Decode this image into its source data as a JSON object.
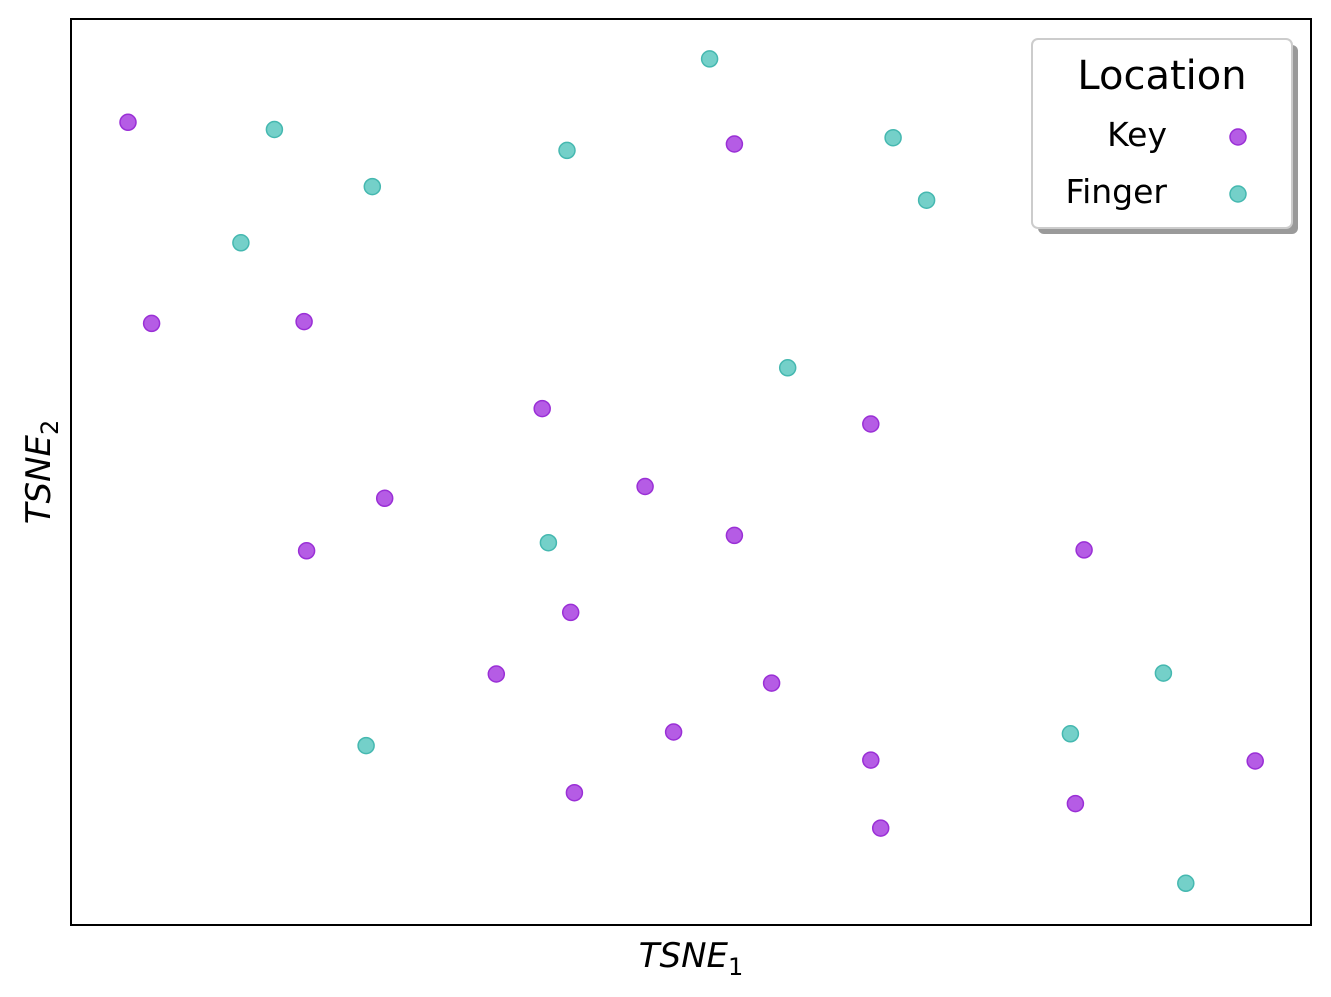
{
  "chart_data": {
    "type": "scatter",
    "title": "",
    "xlabel": "TSNE",
    "xlabel_sub": "1",
    "ylabel": "TSNE",
    "ylabel_sub": "2",
    "xlim": [
      0,
      1
    ],
    "ylim": [
      0,
      1
    ],
    "ticks_visible": false,
    "grid": false,
    "legend": {
      "title": "Location",
      "placement": "top-right",
      "shadow": true
    },
    "series": [
      {
        "name": "Key",
        "color": "#a83fe0",
        "edge_color": "#9a2fd6",
        "points": [
          {
            "x": 0.046,
            "y": 0.886
          },
          {
            "x": 0.065,
            "y": 0.664
          },
          {
            "x": 0.188,
            "y": 0.666
          },
          {
            "x": 0.19,
            "y": 0.413
          },
          {
            "x": 0.253,
            "y": 0.471
          },
          {
            "x": 0.38,
            "y": 0.57
          },
          {
            "x": 0.343,
            "y": 0.277
          },
          {
            "x": 0.403,
            "y": 0.345
          },
          {
            "x": 0.406,
            "y": 0.146
          },
          {
            "x": 0.463,
            "y": 0.484
          },
          {
            "x": 0.486,
            "y": 0.213
          },
          {
            "x": 0.535,
            "y": 0.862
          },
          {
            "x": 0.535,
            "y": 0.43
          },
          {
            "x": 0.565,
            "y": 0.267
          },
          {
            "x": 0.645,
            "y": 0.553
          },
          {
            "x": 0.645,
            "y": 0.182
          },
          {
            "x": 0.653,
            "y": 0.107
          },
          {
            "x": 0.817,
            "y": 0.414
          },
          {
            "x": 0.81,
            "y": 0.134
          },
          {
            "x": 0.955,
            "y": 0.181
          }
        ]
      },
      {
        "name": "Finger",
        "color": "#5cc8c0",
        "edge_color": "#45b8b0",
        "points": [
          {
            "x": 0.164,
            "y": 0.878
          },
          {
            "x": 0.137,
            "y": 0.753
          },
          {
            "x": 0.243,
            "y": 0.815
          },
          {
            "x": 0.4,
            "y": 0.855
          },
          {
            "x": 0.515,
            "y": 0.956
          },
          {
            "x": 0.663,
            "y": 0.869
          },
          {
            "x": 0.69,
            "y": 0.8
          },
          {
            "x": 0.578,
            "y": 0.615
          },
          {
            "x": 0.385,
            "y": 0.422
          },
          {
            "x": 0.238,
            "y": 0.198
          },
          {
            "x": 0.806,
            "y": 0.211
          },
          {
            "x": 0.881,
            "y": 0.278
          },
          {
            "x": 0.899,
            "y": 0.046
          }
        ]
      }
    ]
  }
}
